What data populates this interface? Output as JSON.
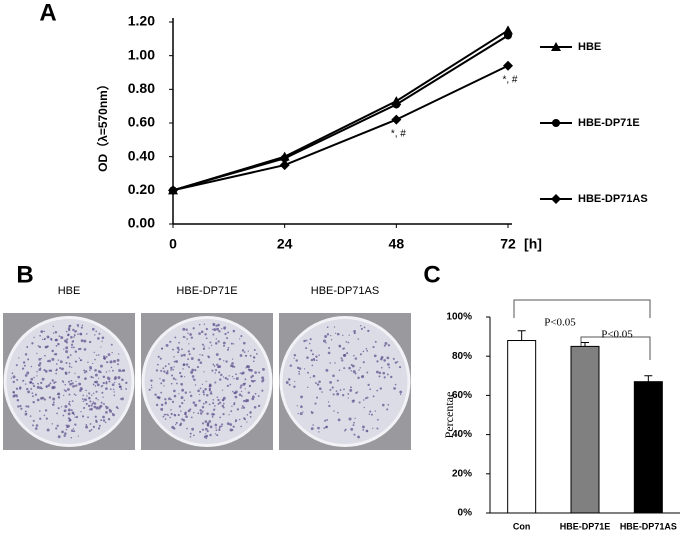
{
  "chart_data": [
    {
      "type": "line",
      "label": "A",
      "ylabel": "OD（λ=570nm）",
      "xlabel": "[h]",
      "x": [
        0,
        24,
        48,
        72
      ],
      "xlim": [
        0,
        72
      ],
      "xticks": [
        0,
        24,
        48,
        72
      ],
      "ylim": [
        0,
        1.2
      ],
      "yticks": [
        {
          "value": 0,
          "label": "0.00"
        },
        {
          "value": 0.2,
          "label": "0.20"
        },
        {
          "value": 0.4,
          "label": "0.40"
        },
        {
          "value": 0.6,
          "label": "0.60"
        },
        {
          "value": 0.8,
          "label": "0.80"
        },
        {
          "value": 1.0,
          "label": "1.00"
        },
        {
          "value": 1.2,
          "label": "1.20"
        }
      ],
      "series": [
        {
          "name": "HBE",
          "color": "#000000",
          "marker": "triangle",
          "values": [
            0.2,
            0.4,
            0.73,
            1.15
          ]
        },
        {
          "name": "HBE-DP71E",
          "color": "#000000",
          "marker": "circle",
          "values": [
            0.2,
            0.39,
            0.71,
            1.12
          ]
        },
        {
          "name": "HBE-DP71AS",
          "color": "#000000",
          "marker": "diamond",
          "values": [
            0.2,
            0.35,
            0.62,
            0.94
          ]
        }
      ],
      "annotations": [
        {
          "text": "*, #",
          "x": 48,
          "y": 0.62
        },
        {
          "text": "*, #",
          "x": 72,
          "y": 0.94
        }
      ]
    },
    {
      "type": "bar",
      "label": "C",
      "ylabel": "Percentae",
      "categories": [
        "Con",
        "HBE-DP71E",
        "HBE-DP71AS"
      ],
      "values": [
        88,
        85,
        67
      ],
      "errors": [
        5,
        2,
        3
      ],
      "colors": [
        "#ffffff",
        "#808080",
        "#000000"
      ],
      "ylim": [
        0,
        100
      ],
      "yticks": [
        {
          "value": 0,
          "label": "0%"
        },
        {
          "value": 20,
          "label": "20%"
        },
        {
          "value": 40,
          "label": "40%"
        },
        {
          "value": 60,
          "label": "60%"
        },
        {
          "value": 80,
          "label": "80%"
        },
        {
          "value": 100,
          "label": "100%"
        }
      ],
      "annotations": [
        "P<0.05",
        "P<0.05"
      ]
    }
  ],
  "image_panel": {
    "label": "B",
    "titles": [
      "HBE",
      "HBE-DP71E",
      "HBE-DP71AS"
    ]
  }
}
